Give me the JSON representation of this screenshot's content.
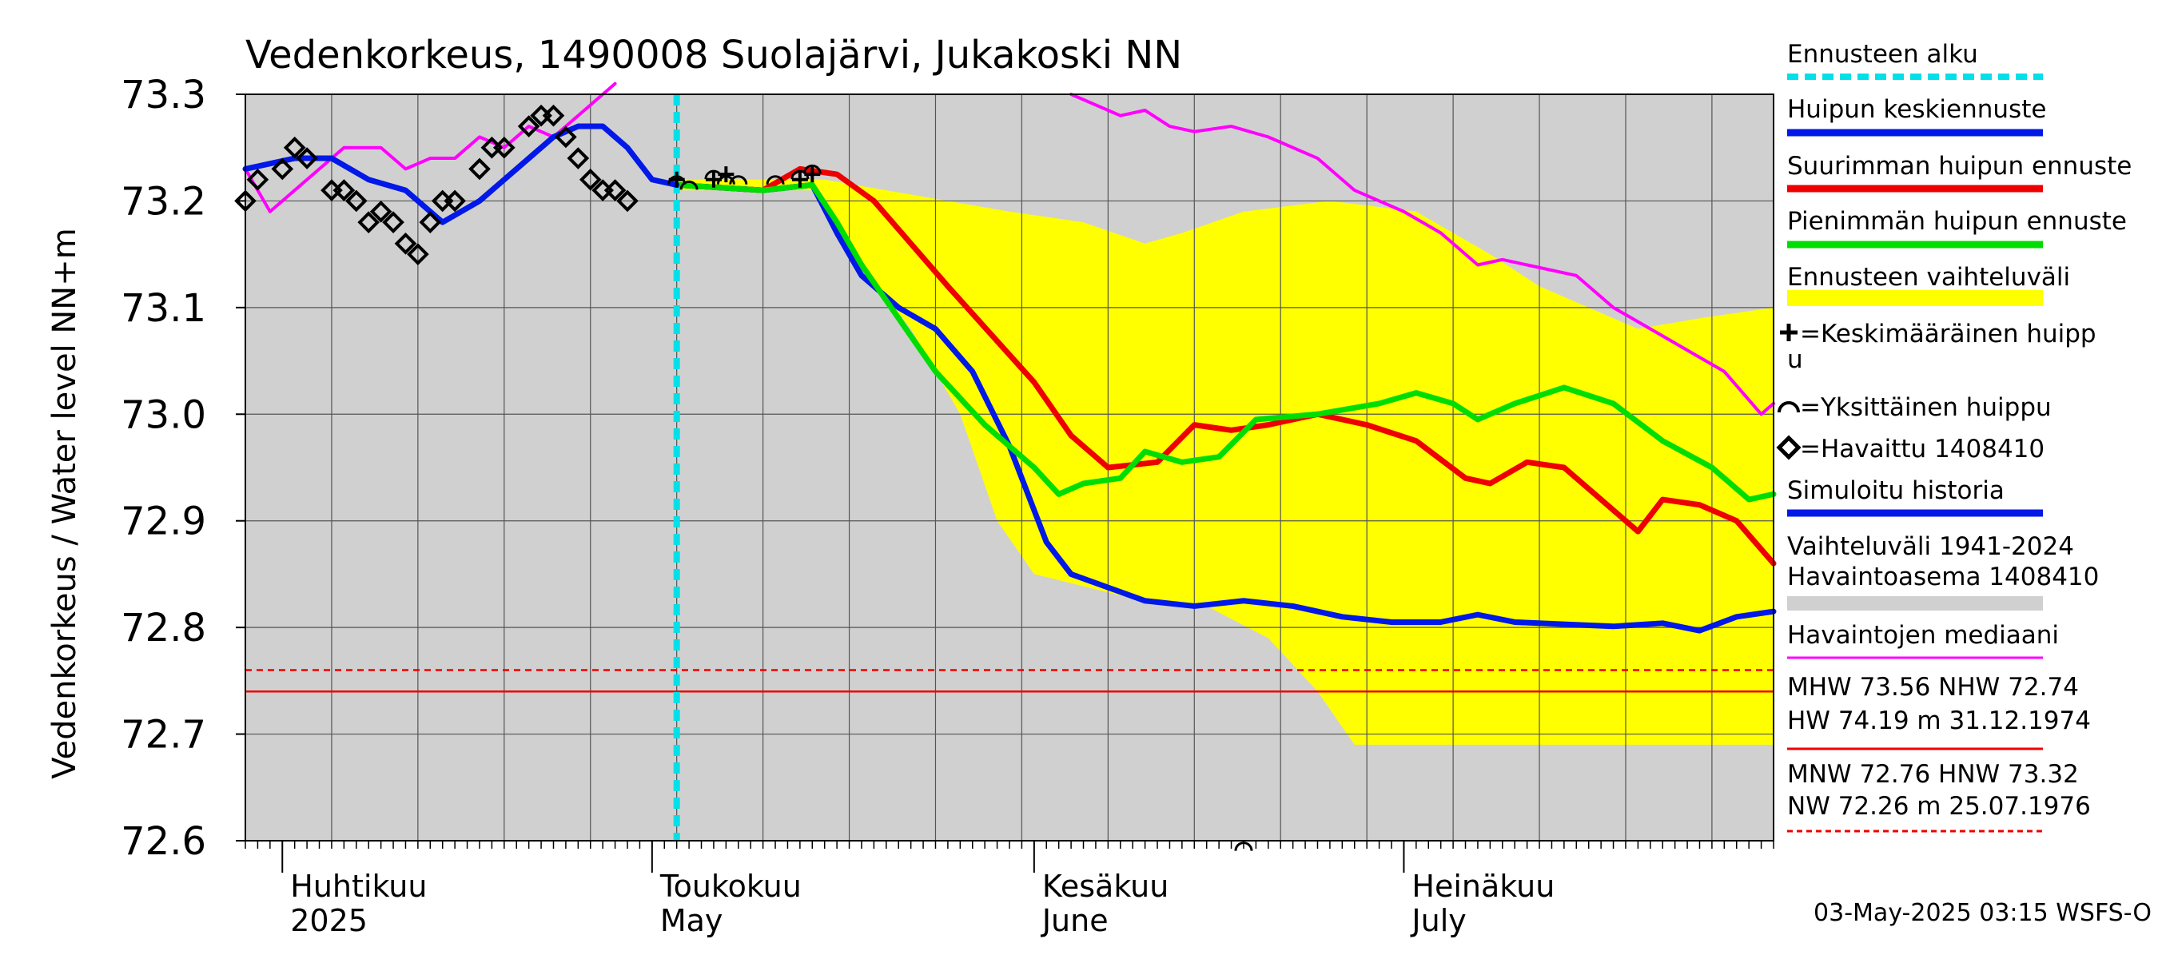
{
  "chart_data": {
    "type": "line",
    "title": "Vedenkorkeus, 1490008 Suolajärvi, Jukakoski NN",
    "ylabel": "Vedenkorkeus / Water level   NN+m",
    "ylim": [
      72.6,
      73.3
    ],
    "yticks": [
      "72.6",
      "72.7",
      "72.8",
      "72.9",
      "73.0",
      "73.1",
      "73.2",
      "73.3"
    ],
    "xlim": [
      "2025-03-29",
      "2025-07-31"
    ],
    "grid": true,
    "month_labels": [
      {
        "date": "2025-04-01",
        "fi": "Huhtikuu",
        "en": "2025"
      },
      {
        "date": "2025-05-01",
        "fi": "Toukokuu",
        "en": "May"
      },
      {
        "date": "2025-06-01",
        "fi": "Kesäkuu",
        "en": "June"
      },
      {
        "date": "2025-07-01",
        "fi": "Heinäkuu",
        "en": "July"
      }
    ],
    "forecast_start": "2025-05-03",
    "reference_lines": [
      {
        "name": "HW 74.19 m 31.12.1974 / NHW",
        "y": 72.74,
        "style": "solid",
        "color": "#ee0000"
      },
      {
        "name": "MNW 72.76",
        "y": 72.76,
        "style": "dashed",
        "color": "#ee0000"
      }
    ],
    "range_band": {
      "name": "Ennusteen vaihteluväli",
      "upper": [
        [
          "2025-05-03",
          73.22
        ],
        [
          "2025-05-15",
          73.22
        ],
        [
          "2025-05-20",
          73.21
        ],
        [
          "2025-05-25",
          73.2
        ],
        [
          "2025-05-30",
          73.19
        ],
        [
          "2025-06-05",
          73.18
        ],
        [
          "2025-06-10",
          73.16
        ],
        [
          "2025-06-13",
          73.17
        ],
        [
          "2025-06-18",
          73.19
        ],
        [
          "2025-06-25",
          73.2
        ],
        [
          "2025-07-02",
          73.19
        ],
        [
          "2025-07-08",
          73.15
        ],
        [
          "2025-07-12",
          73.12
        ],
        [
          "2025-07-16",
          73.1
        ],
        [
          "2025-07-20",
          73.08
        ],
        [
          "2025-07-25",
          73.09
        ],
        [
          "2025-07-31",
          73.1
        ]
      ],
      "lower": [
        [
          "2025-05-03",
          73.21
        ],
        [
          "2025-05-14",
          73.21
        ],
        [
          "2025-05-18",
          73.14
        ],
        [
          "2025-05-22",
          73.08
        ],
        [
          "2025-05-26",
          73.0
        ],
        [
          "2025-05-29",
          72.9
        ],
        [
          "2025-06-01",
          72.85
        ],
        [
          "2025-06-08",
          72.83
        ],
        [
          "2025-06-15",
          72.82
        ],
        [
          "2025-06-20",
          72.79
        ],
        [
          "2025-06-24",
          72.74
        ],
        [
          "2025-06-27",
          72.69
        ],
        [
          "2025-07-05",
          72.69
        ],
        [
          "2025-07-31",
          72.69
        ]
      ]
    },
    "series": [
      {
        "name": "Huipun keskiennuste",
        "color": "#0018e8",
        "width": 7,
        "points": [
          [
            "2025-05-03",
            73.215
          ],
          [
            "2025-05-10",
            73.21
          ],
          [
            "2025-05-14",
            73.215
          ],
          [
            "2025-05-16",
            73.17
          ],
          [
            "2025-05-18",
            73.13
          ],
          [
            "2025-05-21",
            73.1
          ],
          [
            "2025-05-24",
            73.08
          ],
          [
            "2025-05-27",
            73.04
          ],
          [
            "2025-05-30",
            72.97
          ],
          [
            "2025-06-02",
            72.88
          ],
          [
            "2025-06-04",
            72.85
          ],
          [
            "2025-06-10",
            72.825
          ],
          [
            "2025-06-14",
            72.82
          ],
          [
            "2025-06-18",
            72.825
          ],
          [
            "2025-06-22",
            72.82
          ],
          [
            "2025-06-26",
            72.81
          ],
          [
            "2025-06-30",
            72.805
          ],
          [
            "2025-07-04",
            72.805
          ],
          [
            "2025-07-07",
            72.812
          ],
          [
            "2025-07-10",
            72.805
          ],
          [
            "2025-07-14",
            72.803
          ],
          [
            "2025-07-18",
            72.801
          ],
          [
            "2025-07-22",
            72.804
          ],
          [
            "2025-07-25",
            72.797
          ],
          [
            "2025-07-28",
            72.81
          ],
          [
            "2025-07-31",
            72.815
          ]
        ]
      },
      {
        "name": "Suurimman huipun ennuste",
        "color": "#ee0000",
        "width": 7,
        "points": [
          [
            "2025-05-03",
            73.215
          ],
          [
            "2025-05-10",
            73.21
          ],
          [
            "2025-05-13",
            73.23
          ],
          [
            "2025-05-16",
            73.225
          ],
          [
            "2025-05-19",
            73.2
          ],
          [
            "2025-05-25",
            73.12
          ],
          [
            "2025-06-01",
            73.03
          ],
          [
            "2025-06-04",
            72.98
          ],
          [
            "2025-06-07",
            72.95
          ],
          [
            "2025-06-11",
            72.955
          ],
          [
            "2025-06-14",
            72.99
          ],
          [
            "2025-06-17",
            72.985
          ],
          [
            "2025-06-20",
            72.99
          ],
          [
            "2025-06-24",
            73.0
          ],
          [
            "2025-06-28",
            72.99
          ],
          [
            "2025-07-02",
            72.975
          ],
          [
            "2025-07-06",
            72.94
          ],
          [
            "2025-07-08",
            72.935
          ],
          [
            "2025-07-11",
            72.955
          ],
          [
            "2025-07-14",
            72.95
          ],
          [
            "2025-07-17",
            72.92
          ],
          [
            "2025-07-20",
            72.89
          ],
          [
            "2025-07-22",
            72.92
          ],
          [
            "2025-07-25",
            72.915
          ],
          [
            "2025-07-28",
            72.9
          ],
          [
            "2025-07-31",
            72.86
          ]
        ]
      },
      {
        "name": "Pienimmän huipun ennuste",
        "color": "#00dd00",
        "width": 7,
        "points": [
          [
            "2025-05-03",
            73.215
          ],
          [
            "2025-05-10",
            73.21
          ],
          [
            "2025-05-14",
            73.215
          ],
          [
            "2025-05-16",
            73.18
          ],
          [
            "2025-05-18",
            73.14
          ],
          [
            "2025-05-21",
            73.09
          ],
          [
            "2025-05-24",
            73.04
          ],
          [
            "2025-05-28",
            72.99
          ],
          [
            "2025-06-01",
            72.95
          ],
          [
            "2025-06-03",
            72.925
          ],
          [
            "2025-06-05",
            72.935
          ],
          [
            "2025-06-08",
            72.94
          ],
          [
            "2025-06-10",
            72.965
          ],
          [
            "2025-06-13",
            72.955
          ],
          [
            "2025-06-16",
            72.96
          ],
          [
            "2025-06-19",
            72.995
          ],
          [
            "2025-06-24",
            73.0
          ],
          [
            "2025-06-29",
            73.01
          ],
          [
            "2025-07-02",
            73.02
          ],
          [
            "2025-07-05",
            73.01
          ],
          [
            "2025-07-07",
            72.995
          ],
          [
            "2025-07-10",
            73.01
          ],
          [
            "2025-07-14",
            73.025
          ],
          [
            "2025-07-18",
            73.01
          ],
          [
            "2025-07-22",
            72.975
          ],
          [
            "2025-07-26",
            72.95
          ],
          [
            "2025-07-29",
            72.92
          ],
          [
            "2025-07-31",
            72.925
          ]
        ]
      },
      {
        "name": "Havaintojen mediaani",
        "color": "#ff00ff",
        "width": 4,
        "points": [
          [
            "2025-03-29",
            73.23
          ],
          [
            "2025-03-31",
            73.19
          ],
          [
            "2025-04-03",
            73.22
          ],
          [
            "2025-04-06",
            73.25
          ],
          [
            "2025-04-09",
            73.25
          ],
          [
            "2025-04-11",
            73.23
          ],
          [
            "2025-04-13",
            73.24
          ],
          [
            "2025-04-15",
            73.24
          ],
          [
            "2025-04-17",
            73.26
          ],
          [
            "2025-04-19",
            73.25
          ],
          [
            "2025-04-21",
            73.27
          ],
          [
            "2025-04-23",
            73.26
          ],
          [
            "2025-04-26",
            73.29
          ],
          [
            "2025-04-28",
            73.31
          ]
        ]
      },
      {
        "name": "Havaintojen mediaani (loppu)",
        "color": "#ff00ff",
        "width": 4,
        "points": [
          [
            "2025-06-04",
            73.3
          ],
          [
            "2025-06-08",
            73.28
          ],
          [
            "2025-06-10",
            73.285
          ],
          [
            "2025-06-12",
            73.27
          ],
          [
            "2025-06-14",
            73.265
          ],
          [
            "2025-06-17",
            73.27
          ],
          [
            "2025-06-20",
            73.26
          ],
          [
            "2025-06-24",
            73.24
          ],
          [
            "2025-06-27",
            73.21
          ],
          [
            "2025-07-01",
            73.19
          ],
          [
            "2025-07-04",
            73.17
          ],
          [
            "2025-07-07",
            73.14
          ],
          [
            "2025-07-09",
            73.145
          ],
          [
            "2025-07-11",
            73.14
          ],
          [
            "2025-07-15",
            73.13
          ],
          [
            "2025-07-18",
            73.1
          ],
          [
            "2025-07-21",
            73.08
          ],
          [
            "2025-07-24",
            73.06
          ],
          [
            "2025-07-27",
            73.04
          ],
          [
            "2025-07-30",
            73.0
          ],
          [
            "2025-07-31",
            73.01
          ]
        ]
      },
      {
        "name": "Simuloitu historia",
        "color": "#0018e8",
        "width": 7,
        "points": [
          [
            "2025-03-29",
            73.23
          ],
          [
            "2025-04-02",
            73.24
          ],
          [
            "2025-04-05",
            73.24
          ],
          [
            "2025-04-08",
            73.22
          ],
          [
            "2025-04-11",
            73.21
          ],
          [
            "2025-04-14",
            73.18
          ],
          [
            "2025-04-17",
            73.2
          ],
          [
            "2025-04-19",
            73.22
          ],
          [
            "2025-04-21",
            73.24
          ],
          [
            "2025-04-23",
            73.26
          ],
          [
            "2025-04-25",
            73.27
          ],
          [
            "2025-04-27",
            73.27
          ],
          [
            "2025-04-29",
            73.25
          ],
          [
            "2025-05-01",
            73.22
          ],
          [
            "2025-05-03",
            73.215
          ]
        ]
      }
    ],
    "observed": {
      "name": "Havaittu 1408410",
      "points": [
        [
          "2025-03-29",
          73.2
        ],
        [
          "2025-03-30",
          73.22
        ],
        [
          "2025-04-01",
          73.23
        ],
        [
          "2025-04-02",
          73.25
        ],
        [
          "2025-04-03",
          73.24
        ],
        [
          "2025-04-05",
          73.21
        ],
        [
          "2025-04-06",
          73.21
        ],
        [
          "2025-04-07",
          73.2
        ],
        [
          "2025-04-08",
          73.18
        ],
        [
          "2025-04-09",
          73.19
        ],
        [
          "2025-04-10",
          73.18
        ],
        [
          "2025-04-11",
          73.16
        ],
        [
          "2025-04-12",
          73.15
        ],
        [
          "2025-04-13",
          73.18
        ],
        [
          "2025-04-14",
          73.2
        ],
        [
          "2025-04-15",
          73.2
        ],
        [
          "2025-04-17",
          73.23
        ],
        [
          "2025-04-18",
          73.25
        ],
        [
          "2025-04-19",
          73.25
        ],
        [
          "2025-04-21",
          73.27
        ],
        [
          "2025-04-22",
          73.28
        ],
        [
          "2025-04-23",
          73.28
        ],
        [
          "2025-04-24",
          73.26
        ],
        [
          "2025-04-25",
          73.24
        ],
        [
          "2025-04-26",
          73.22
        ],
        [
          "2025-04-27",
          73.21
        ],
        [
          "2025-04-28",
          73.21
        ],
        [
          "2025-04-29",
          73.2
        ]
      ]
    },
    "peaks_mean": [
      [
        "2025-05-03",
        73.22
      ],
      [
        "2025-05-06",
        73.22
      ],
      [
        "2025-05-07",
        73.225
      ],
      [
        "2025-05-13",
        73.22
      ],
      [
        "2025-05-14",
        73.225
      ]
    ],
    "peaks_single": [
      [
        "2025-05-03",
        73.22
      ],
      [
        "2025-05-04",
        73.215
      ],
      [
        "2025-05-06",
        73.225
      ],
      [
        "2025-05-07",
        73.22
      ],
      [
        "2025-05-08",
        73.22
      ],
      [
        "2025-05-11",
        73.22
      ],
      [
        "2025-05-13",
        73.225
      ],
      [
        "2025-05-14",
        73.23
      ],
      [
        "2025-06-18",
        72.595
      ]
    ],
    "legend_position": "right",
    "footer": "03-May-2025 03:15 WSFS-O"
  },
  "legend": [
    {
      "label": "Ennusteen alku",
      "kind": "dashed",
      "color": "#00e0e8"
    },
    {
      "label": "Huipun keskiennuste",
      "kind": "line",
      "color": "#0018e8"
    },
    {
      "label": "Suurimman huipun ennuste",
      "kind": "line",
      "color": "#ee0000"
    },
    {
      "label": "Pienimmän huipun ennuste",
      "kind": "line",
      "color": "#00dd00"
    },
    {
      "label": "Ennusteen vaihteluväli",
      "kind": "band",
      "color": "#ffff00"
    },
    {
      "label": "=Keskimääräinen huipp",
      "label2": "u",
      "kind": "cross",
      "color": "#000000"
    },
    {
      "label": "=Yksittäinen huippu",
      "kind": "arc",
      "color": "#000000"
    },
    {
      "label": "=Havaittu 1408410",
      "kind": "diamond",
      "color": "#000000"
    },
    {
      "label": "Simuloitu historia",
      "kind": "line",
      "color": "#0018e8"
    },
    {
      "label": "Vaihteluväli 1941-2024",
      "label2": " Havaintoasema 1408410",
      "kind": "grayband",
      "color": "#d0d0d0"
    },
    {
      "label": "Havaintojen mediaani",
      "kind": "thinline",
      "color": "#ff00ff"
    },
    {
      "label": "MHW  73.56 NHW  72.74",
      "label2": "HW  74.19 m 31.12.1974",
      "kind": "thinline",
      "color": "#ee0000"
    },
    {
      "label": "MNW  72.76 HNW  73.32",
      "label2": "NW  72.26 m 25.07.1976",
      "kind": "dashthin",
      "color": "#ee0000"
    }
  ],
  "colors": {
    "plot_bg": "#d0d0d0",
    "grid": "#555555",
    "band": "#ffff00",
    "forecast_line": "#00e0e8"
  }
}
